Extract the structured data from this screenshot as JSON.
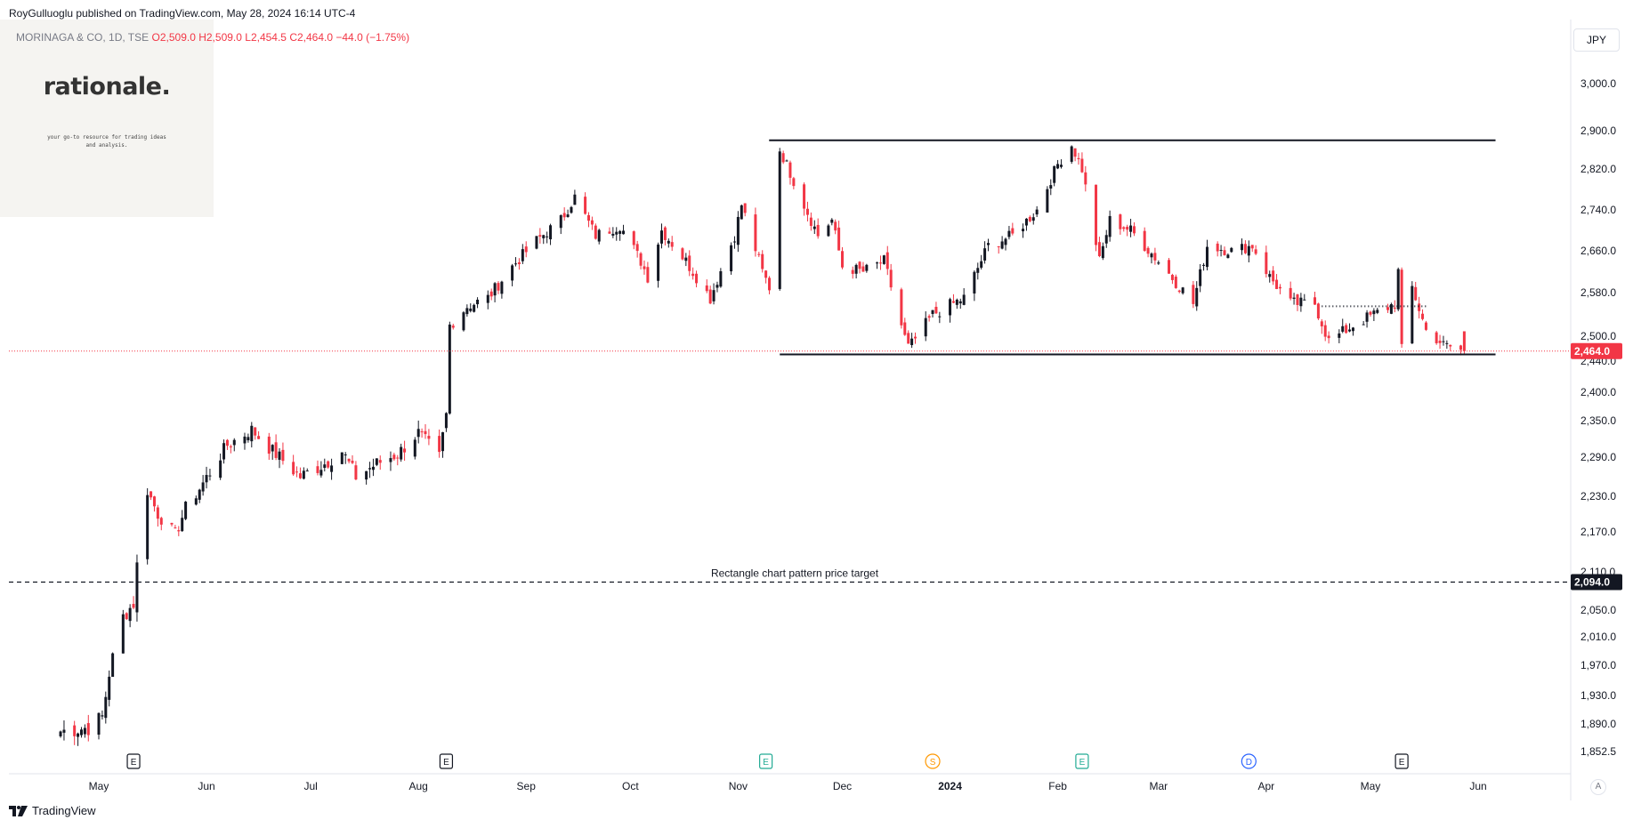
{
  "header": {
    "published": "RoyGulluoglu published on TradingView.com, May 28, 2024 16:14 UTC-4"
  },
  "symbol": {
    "name": "MORINAGA & CO, 1D, TSE",
    "open": "O2,509.0",
    "high": "H2,509.0",
    "low": "L2,454.5",
    "close": "C2,464.0",
    "change": "−44.0 (−1.75%)"
  },
  "logo": {
    "text": "rationale.",
    "tagline": "your go-to resource for trading ideas and analysis."
  },
  "currency": "JPY",
  "footer": {
    "brand": "TradingView"
  },
  "auto_label": "A",
  "chart_data": {
    "type": "candlestick",
    "x_ticks": [
      "May",
      "Jun",
      "Jul",
      "Aug",
      "Sep",
      "Oct",
      "Nov",
      "Dec",
      "2024",
      "Feb",
      "Mar",
      "Apr",
      "May",
      "Jun"
    ],
    "x_tick_dates": [
      "2023-05-01",
      "2023-06-01",
      "2023-07-01",
      "2023-08-01",
      "2023-09-01",
      "2023-10-01",
      "2023-11-01",
      "2023-12-01",
      "2024-01-01",
      "2024-02-01",
      "2024-03-01",
      "2024-04-01",
      "2024-05-01",
      "2024-06-01"
    ],
    "y_ticks": [
      3000.0,
      2900.0,
      2820.0,
      2740.0,
      2660.0,
      2580.0,
      2500.0,
      2440.0,
      2400.0,
      2350.0,
      2290.0,
      2230.0,
      2170.0,
      2110.0,
      2050.0,
      2010.0,
      1970.0,
      1930.0,
      1890.0,
      1852.5
    ],
    "y_tick_labels": [
      "3,000.0",
      "2,900.0",
      "2,820.0",
      "2,740.0",
      "2,660.0",
      "2,580.0",
      "2,500.0",
      "2,440.0",
      "2,400.0",
      "2,350.0",
      "2,290.0",
      "2,230.0",
      "2,170.0",
      "2,110.0",
      "2,050.0",
      "2,010.0",
      "1,970.0",
      "1,930.0",
      "1,890.0",
      "1,852.5"
    ],
    "last_price": {
      "value": 2464.0,
      "label": "2,464.0",
      "color": "#f23645"
    },
    "target": {
      "value": 2094.0,
      "label": "2,094.0",
      "annotation": "Rectangle chart pattern price target"
    },
    "rectangle": {
      "top": 2880,
      "bottom": 2456,
      "start": "2023-11-13",
      "end": "2024-06-06"
    },
    "resistance_dotted": {
      "value": 2555,
      "start": "2024-04-17",
      "end": "2024-05-17"
    },
    "events": [
      {
        "date": "2023-05-11",
        "type": "E",
        "color": "#131722"
      },
      {
        "date": "2023-08-09",
        "type": "E",
        "color": "#131722"
      },
      {
        "date": "2023-11-09",
        "type": "E",
        "color": "#22ab94"
      },
      {
        "date": "2023-12-27",
        "type": "S",
        "color": "#ff9800"
      },
      {
        "date": "2024-02-08",
        "type": "E",
        "color": "#22ab94"
      },
      {
        "date": "2024-03-27",
        "type": "D",
        "color": "#2962ff"
      },
      {
        "date": "2024-05-10",
        "type": "E",
        "color": "#131722"
      }
    ],
    "waypoints": [
      [
        "2023-04-20",
        1880
      ],
      [
        "2023-04-28",
        1885
      ],
      [
        "2023-05-02",
        1900
      ],
      [
        "2023-05-04",
        1960
      ],
      [
        "2023-05-08",
        2040
      ],
      [
        "2023-05-11",
        2060
      ],
      [
        "2023-05-12",
        2120
      ],
      [
        "2023-05-15",
        2240
      ],
      [
        "2023-05-18",
        2200
      ],
      [
        "2023-05-23",
        2165
      ],
      [
        "2023-05-26",
        2210
      ],
      [
        "2023-05-31",
        2250
      ],
      [
        "2023-06-07",
        2310
      ],
      [
        "2023-06-14",
        2335
      ],
      [
        "2023-06-20",
        2300
      ],
      [
        "2023-06-28",
        2260
      ],
      [
        "2023-07-05",
        2280
      ],
      [
        "2023-07-10",
        2300
      ],
      [
        "2023-07-14",
        2260
      ],
      [
        "2023-07-20",
        2280
      ],
      [
        "2023-07-26",
        2295
      ],
      [
        "2023-08-01",
        2330
      ],
      [
        "2023-08-07",
        2290
      ],
      [
        "2023-08-09",
        2360
      ],
      [
        "2023-08-10",
        2520
      ],
      [
        "2023-08-15",
        2555
      ],
      [
        "2023-08-21",
        2570
      ],
      [
        "2023-08-28",
        2630
      ],
      [
        "2023-09-04",
        2680
      ],
      [
        "2023-09-11",
        2720
      ],
      [
        "2023-09-15",
        2765
      ],
      [
        "2023-09-21",
        2690
      ],
      [
        "2023-09-28",
        2710
      ],
      [
        "2023-10-04",
        2640
      ],
      [
        "2023-10-06",
        2610
      ],
      [
        "2023-10-10",
        2700
      ],
      [
        "2023-10-17",
        2640
      ],
      [
        "2023-10-24",
        2570
      ],
      [
        "2023-10-31",
        2690
      ],
      [
        "2023-11-02",
        2750
      ],
      [
        "2023-11-08",
        2620
      ],
      [
        "2023-11-10",
        2590
      ],
      [
        "2023-11-13",
        2860
      ],
      [
        "2023-11-20",
        2750
      ],
      [
        "2023-11-24",
        2690
      ],
      [
        "2023-11-28",
        2720
      ],
      [
        "2023-12-01",
        2630
      ],
      [
        "2023-12-07",
        2620
      ],
      [
        "2023-12-13",
        2640
      ],
      [
        "2023-12-18",
        2520
      ],
      [
        "2023-12-20",
        2475
      ],
      [
        "2023-12-27",
        2540
      ],
      [
        "2024-01-05",
        2570
      ],
      [
        "2024-01-12",
        2670
      ],
      [
        "2024-01-19",
        2690
      ],
      [
        "2024-01-26",
        2740
      ],
      [
        "2024-02-01",
        2830
      ],
      [
        "2024-02-05",
        2870
      ],
      [
        "2024-02-08",
        2820
      ],
      [
        "2024-02-13",
        2640
      ],
      [
        "2024-02-16",
        2720
      ],
      [
        "2024-02-22",
        2700
      ],
      [
        "2024-03-01",
        2640
      ],
      [
        "2024-03-06",
        2600
      ],
      [
        "2024-03-11",
        2560
      ],
      [
        "2024-03-15",
        2670
      ],
      [
        "2024-03-22",
        2660
      ],
      [
        "2024-03-28",
        2670
      ],
      [
        "2024-04-02",
        2610
      ],
      [
        "2024-04-08",
        2560
      ],
      [
        "2024-04-15",
        2560
      ],
      [
        "2024-04-19",
        2490
      ],
      [
        "2024-04-26",
        2520
      ],
      [
        "2024-05-02",
        2540
      ],
      [
        "2024-05-08",
        2560
      ],
      [
        "2024-05-09",
        2620
      ],
      [
        "2024-05-10",
        2470
      ],
      [
        "2024-05-13",
        2590
      ],
      [
        "2024-05-17",
        2510
      ],
      [
        "2024-05-22",
        2480
      ],
      [
        "2024-05-28",
        2464
      ]
    ]
  }
}
